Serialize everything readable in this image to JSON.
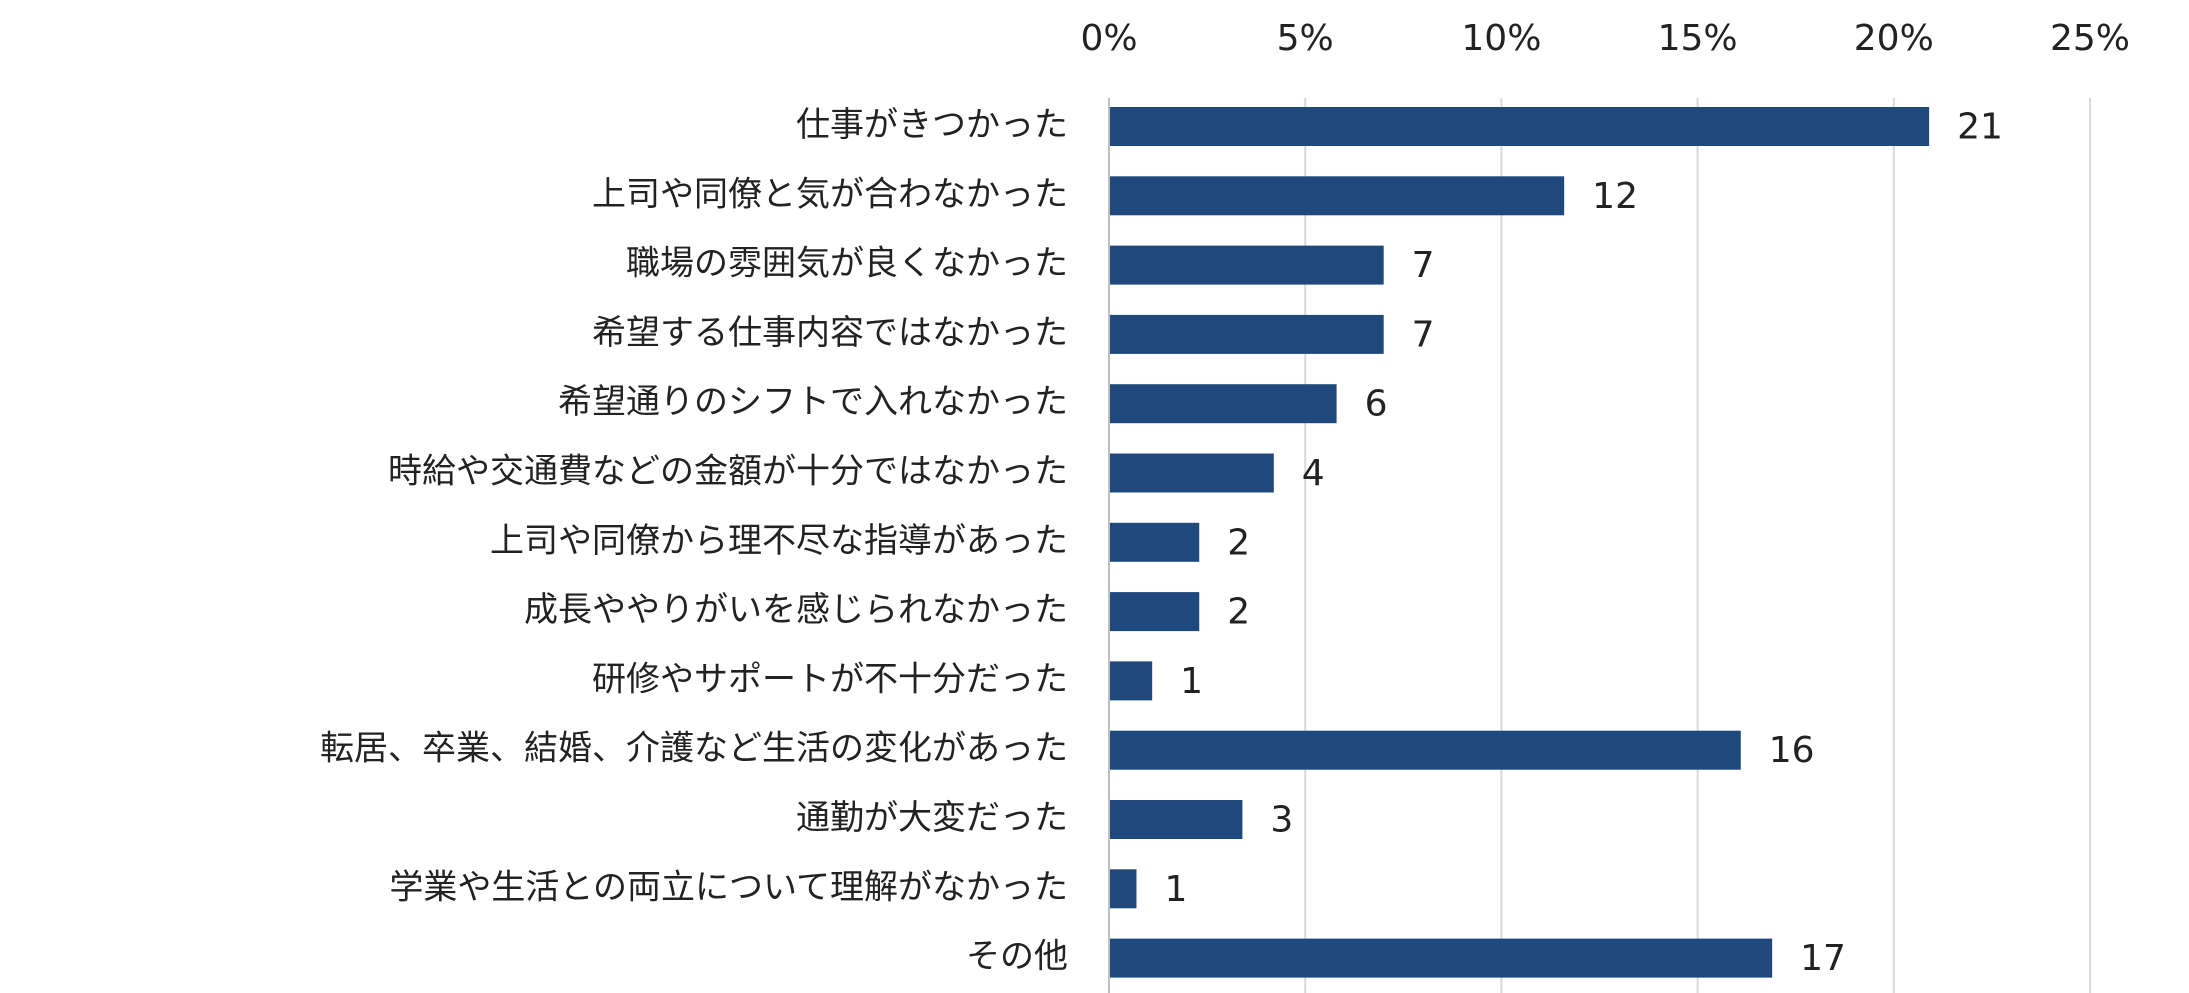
{
  "chart_data": {
    "type": "bar",
    "orientation": "horizontal",
    "categories": [
      "仕事がきつかった",
      "上司や同僚と気が合わなかった",
      "職場の雰囲気が良くなかった",
      "希望する仕事内容ではなかった",
      "希望通りのシフトで入れなかった",
      "時給や交通費などの金額が十分ではなかった",
      "上司や同僚から理不尽な指導があった",
      "成長ややりがいを感じられなかった",
      "研修やサポートが不十分だった",
      "転居、卒業、結婚、介護など生活の変化があった",
      "通勤が大変だった",
      "学業や生活との両立について理解がなかった",
      "その他"
    ],
    "values": [
      21,
      12,
      7,
      7,
      6,
      4,
      2,
      2,
      1,
      16,
      3,
      1,
      17
    ],
    "bar_lengths_percent": [
      20.9,
      11.6,
      7.0,
      7.0,
      5.8,
      4.2,
      2.3,
      2.3,
      1.1,
      16.1,
      3.4,
      0.7,
      16.9
    ],
    "data_labels": [
      "21",
      "12",
      "7",
      "7",
      "6",
      "4",
      "2",
      "2",
      "1",
      "16",
      "3",
      "1",
      "17"
    ],
    "x_ticks": [
      "0%",
      "5%",
      "10%",
      "15%",
      "20%",
      "25%"
    ],
    "xlim": [
      0,
      25
    ],
    "x_axis_position": "top",
    "grid": "vertical",
    "legend": "none",
    "title": "",
    "xlabel": "",
    "ylabel": "",
    "colors": {
      "bar": "#1f497d",
      "grid": "#d9d9d9",
      "axis": "#bfbfbf",
      "text": "#222222"
    }
  }
}
